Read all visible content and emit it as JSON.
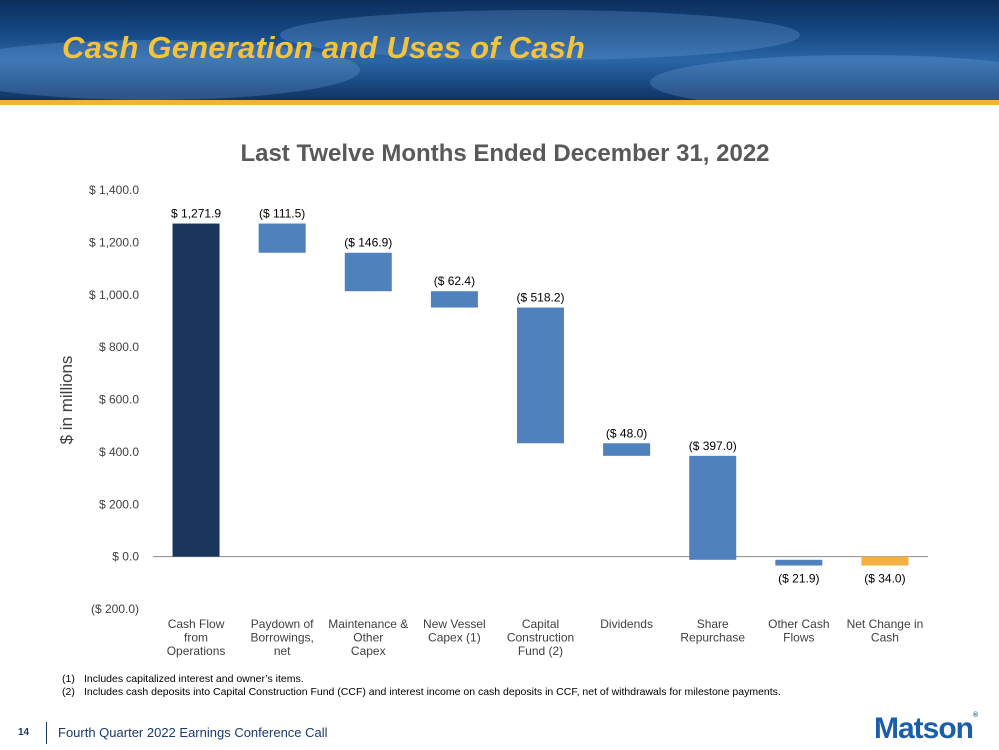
{
  "slide": {
    "title": "Cash Generation and Uses of Cash",
    "footer_text": "Fourth Quarter 2022 Earnings Conference Call",
    "page_number": "14",
    "logo_text": "Matson",
    "logo_mark": "®"
  },
  "footnotes": [
    {
      "num": "(1)",
      "text": "Includes capitalized interest and owner’s items."
    },
    {
      "num": "(2)",
      "text": "Includes cash deposits into Capital Construction Fund (CCF) and interest income on cash deposits in CCF, net of withdrawals for milestone payments."
    }
  ],
  "colors": {
    "header_title": "#f3c33b",
    "accent_bar": "#f0b433",
    "total_bar": "#1b365d",
    "use_bar": "#4f81bd",
    "net_bar": "#f5b041",
    "logo": "#1c5fa8"
  },
  "chart_data": {
    "type": "bar",
    "subtype": "waterfall",
    "title": "Last Twelve Months Ended December 31, 2022",
    "ylabel": "$ in millions",
    "ylim": [
      -200,
      1400
    ],
    "yticks": [
      1400,
      1200,
      1000,
      800,
      600,
      400,
      200,
      0,
      -200
    ],
    "ytick_labels": [
      "$ 1,400.0",
      "$ 1,200.0",
      "$ 1,000.0",
      "$ 800.0",
      "$ 600.0",
      "$ 400.0",
      "$ 200.0",
      "$ 0.0",
      "($ 200.0)"
    ],
    "grid": false,
    "categories": [
      [
        "Cash Flow",
        "from",
        "Operations"
      ],
      [
        "Paydown of",
        "Borrowings,",
        "net"
      ],
      [
        "Maintenance &",
        "Other",
        "Capex"
      ],
      [
        "New Vessel",
        "Capex (1)"
      ],
      [
        "Capital",
        "Construction",
        "Fund (2)"
      ],
      [
        "Dividends"
      ],
      [
        "Share",
        "Repurchase"
      ],
      [
        "Other Cash",
        "Flows"
      ],
      [
        "Net Change in",
        "Cash"
      ]
    ],
    "values": [
      1271.9,
      -111.5,
      -146.9,
      -62.4,
      -518.2,
      -48.0,
      -397.0,
      -21.9,
      -34.0
    ],
    "bar_kinds": [
      "total",
      "use",
      "use",
      "use",
      "use",
      "use",
      "use",
      "use",
      "net"
    ],
    "data_labels": [
      "$ 1,271.9",
      "($ 111.5)",
      "($ 146.9)",
      "($ 62.4)",
      "($ 518.2)",
      "($ 48.0)",
      "($ 397.0)",
      "($ 21.9)",
      "($ 34.0)"
    ]
  }
}
